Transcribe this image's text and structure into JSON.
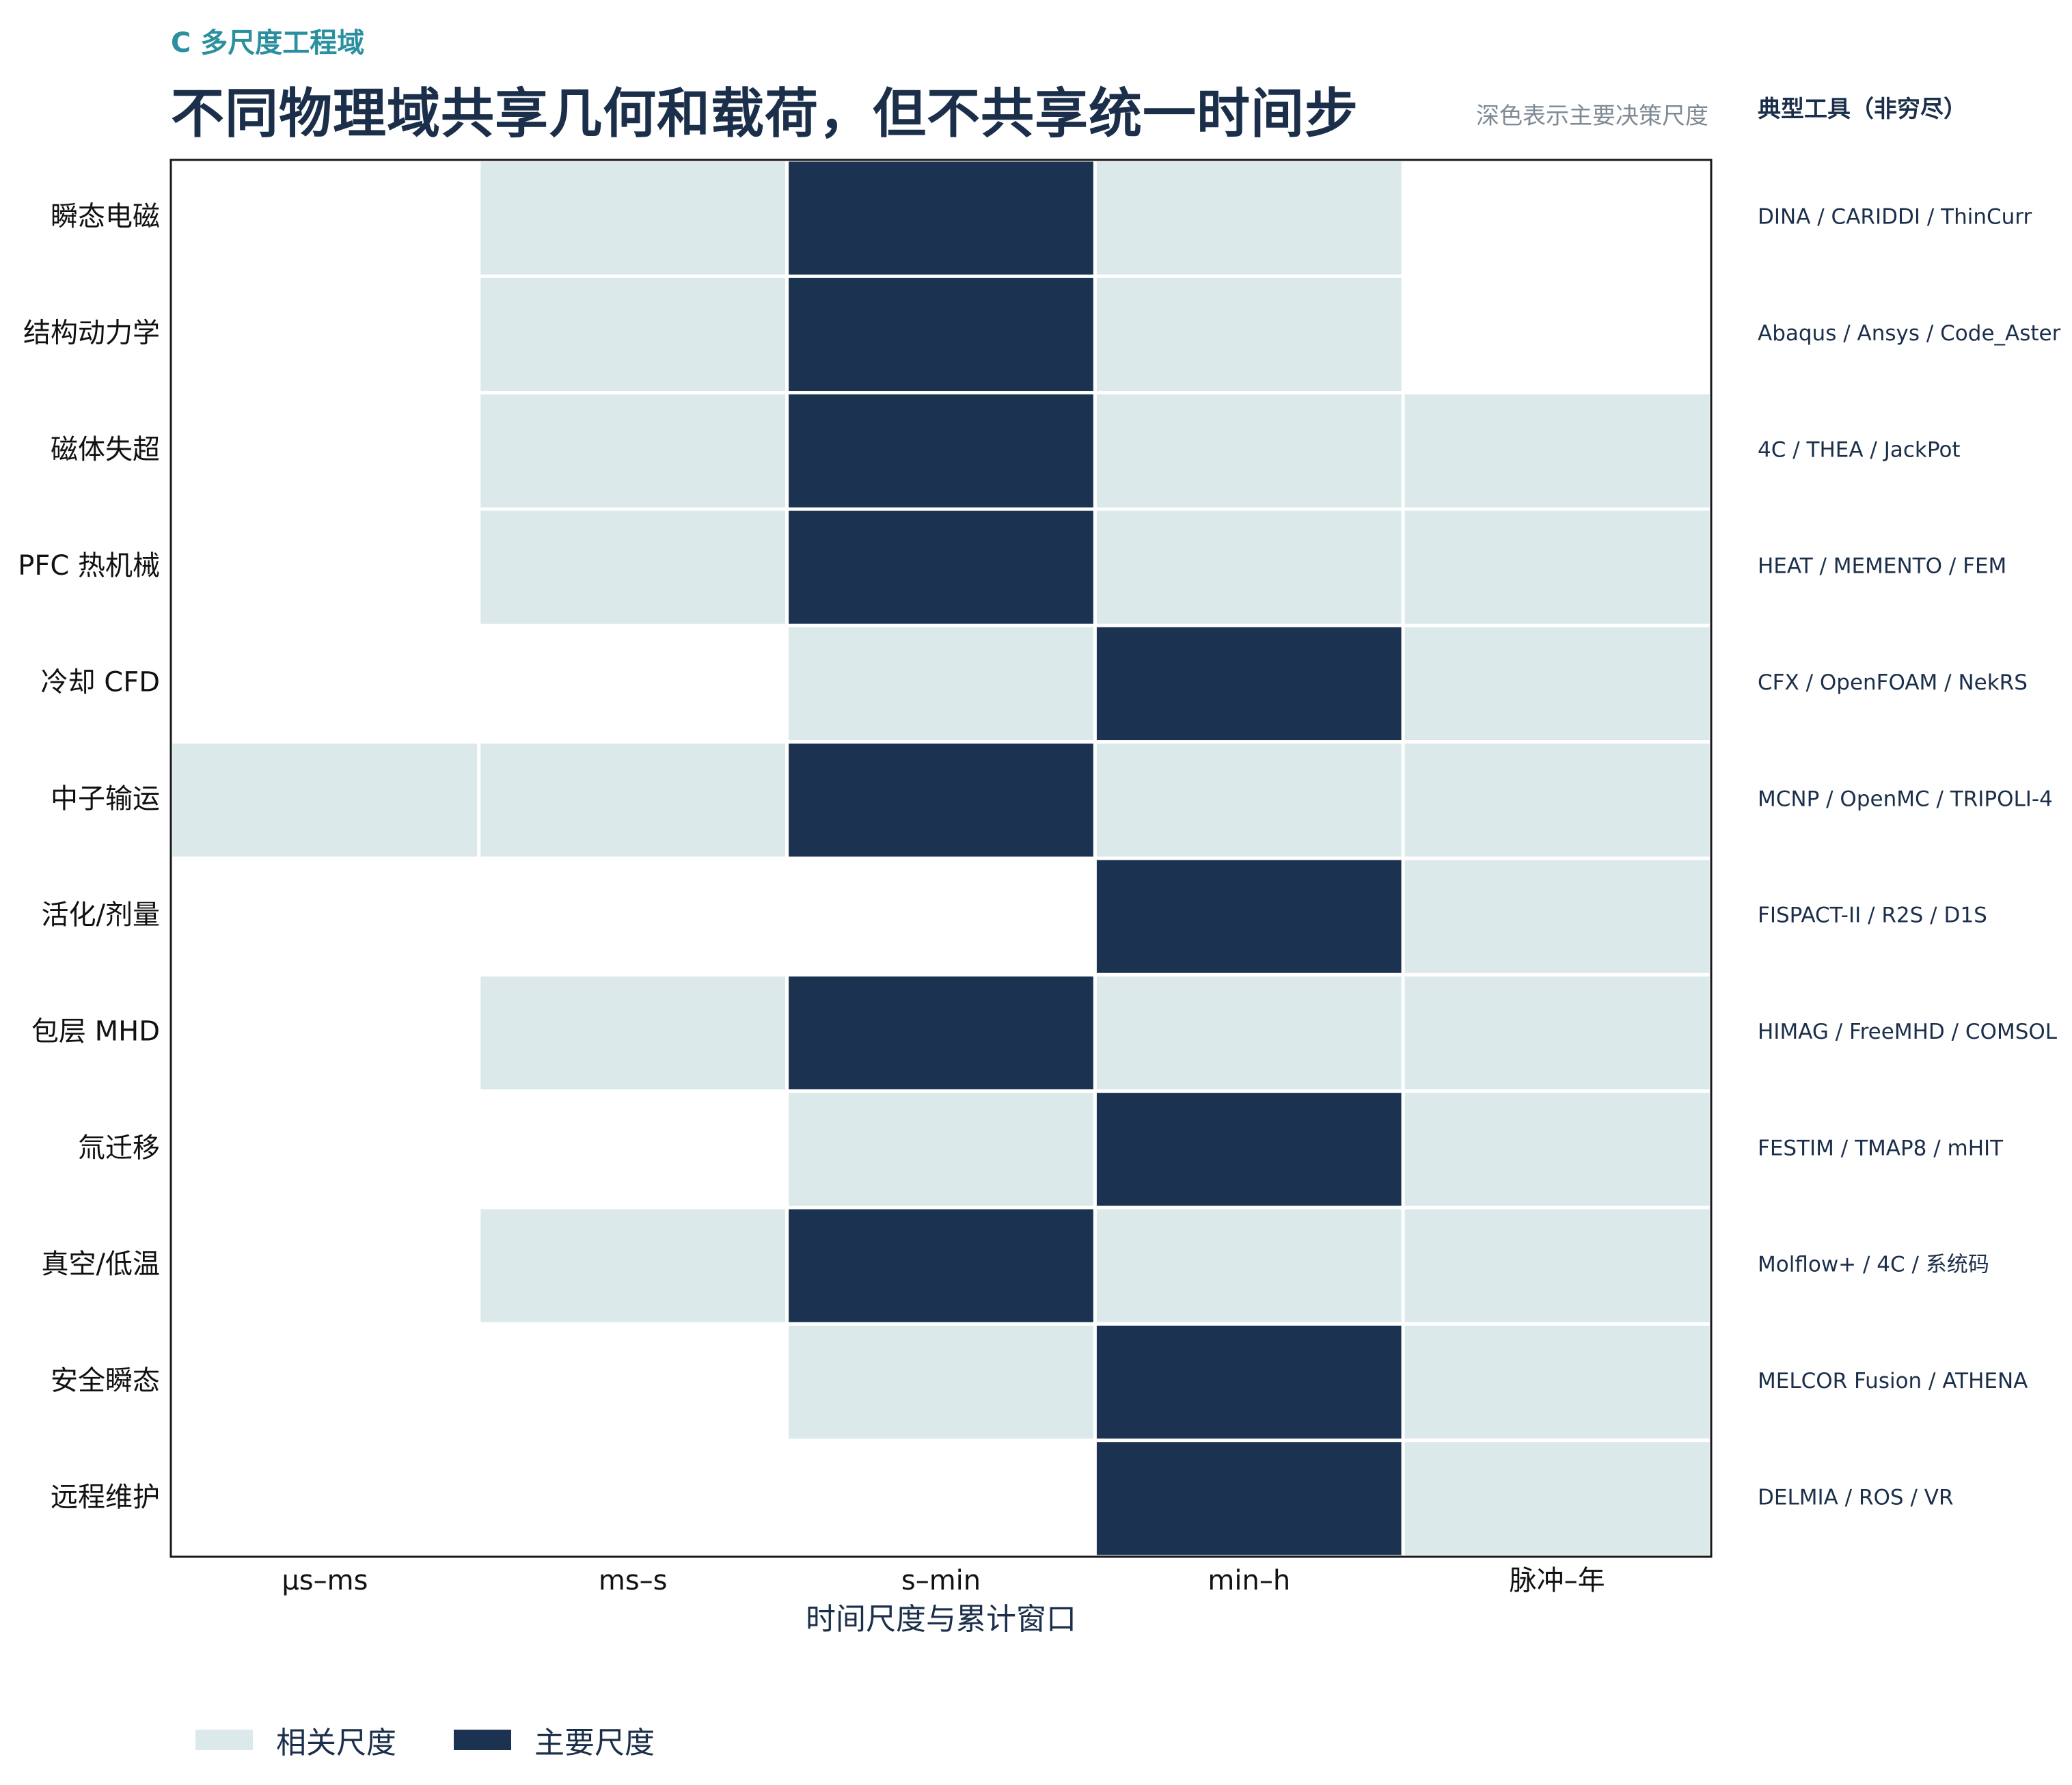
{
  "header": {
    "panel_tag": "C  多尺度工程域",
    "title": "不同物理域共享几何和载荷，但不共享统一时间步",
    "note": "深色表示主要决策尺度",
    "tools_header": "典型工具（非穷尽）"
  },
  "colors": {
    "primary": "#1b3350",
    "related": "#dce9ea",
    "none": "#ffffff",
    "accent": "#2a8f9e"
  },
  "legend": {
    "related_label": "相关尺度",
    "primary_label": "主要尺度"
  },
  "chart_data": {
    "type": "heatmap",
    "title": "不同物理域共享几何和载荷，但不共享统一时间步",
    "xlabel": "时间尺度与累计窗口",
    "categories": [
      "μs–ms",
      "ms–s",
      "s–min",
      "min–h",
      "脉冲–年"
    ],
    "rows": [
      "瞬态电磁",
      "结构动力学",
      "磁体失超",
      "PFC 热机械",
      "冷却 CFD",
      "中子输运",
      "活化/剂量",
      "包层 MHD",
      "氚迁移",
      "真空/低温",
      "安全瞬态",
      "远程维护"
    ],
    "value_legend": {
      "0": "",
      "1": "相关尺度",
      "2": "主要尺度"
    },
    "values": [
      [
        0,
        1,
        2,
        1,
        0
      ],
      [
        0,
        1,
        2,
        1,
        0
      ],
      [
        0,
        1,
        2,
        1,
        1
      ],
      [
        0,
        1,
        2,
        1,
        1
      ],
      [
        0,
        0,
        1,
        2,
        1
      ],
      [
        1,
        1,
        2,
        1,
        1
      ],
      [
        0,
        0,
        0,
        2,
        1
      ],
      [
        0,
        1,
        2,
        1,
        1
      ],
      [
        0,
        0,
        1,
        2,
        1
      ],
      [
        0,
        1,
        2,
        1,
        1
      ],
      [
        0,
        0,
        1,
        2,
        1
      ],
      [
        0,
        0,
        0,
        2,
        1
      ]
    ],
    "tools": [
      "DINA / CARIDDI / ThinCurr",
      "Abaqus / Ansys / Code_Aster",
      "4C / THEA / JackPot",
      "HEAT / MEMENTO / FEM",
      "CFX / OpenFOAM / NekRS",
      "MCNP / OpenMC / TRIPOLI-4",
      "FISPACT-II / R2S / D1S",
      "HIMAG / FreeMHD / COMSOL",
      "FESTIM / TMAP8 / mHIT",
      "Molflow+ / 4C / 系统码",
      "MELCOR Fusion / ATHENA",
      "DELMIA / ROS / VR"
    ]
  }
}
